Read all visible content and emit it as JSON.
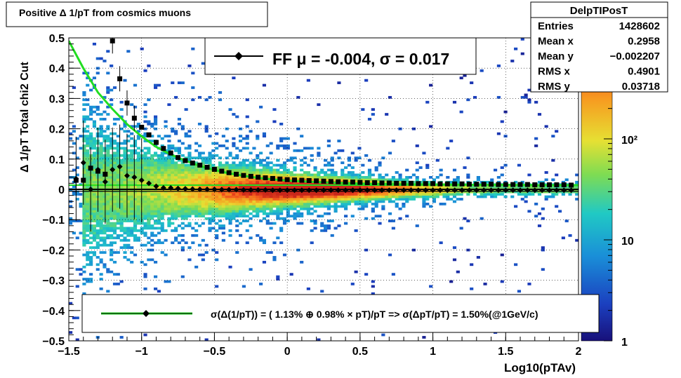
{
  "colors": {
    "fit_line": "#22dd22",
    "markers": "#000000",
    "frame": "#000000",
    "grid": "#000000"
  },
  "chart_data": {
    "type": "heatmap",
    "title": "Positive Δ 1/pT from cosmics muons",
    "xlabel": "Log10(pTAv)",
    "ylabel": "Δ 1/pT  Total chi2 Cut",
    "xlim": [
      -1.5,
      2.0
    ],
    "ylim": [
      -0.5,
      0.5
    ],
    "x_ticks": [
      "−1.5",
      "−1",
      "−0.5",
      "0",
      "0.5",
      "1",
      "1.5",
      "2"
    ],
    "y_ticks": [
      "−0.5",
      "−0.4",
      "−0.3",
      "−0.2",
      "−0.1",
      "0",
      "0.1",
      "0.2",
      "0.3",
      "0.4",
      "0.5"
    ],
    "grid": true,
    "colorbar": {
      "scale": "log",
      "range": [
        1,
        1000
      ],
      "tick_labels": [
        "1",
        "10",
        "10²"
      ],
      "tick_values": [
        1,
        10,
        100
      ]
    },
    "stats_box": {
      "name": "DelpTIPosT",
      "rows": [
        {
          "label": "Entries",
          "value": "1428602"
        },
        {
          "label": "Mean x",
          "value": "0.2958"
        },
        {
          "label": "Mean y",
          "value": "−0.002207"
        },
        {
          "label": "RMS x",
          "value": "0.4901"
        },
        {
          "label": "RMS y",
          "value": "0.03718"
        }
      ]
    },
    "legend_top": "FF μ = -0.004, σ =   0.017",
    "legend_bottom": "σ(Δ(1/pT)) = ( 1.13% ⊕  0.98% × pT)/pT => σ(ΔpT/pT) =  1.50%(@1GeV/c)",
    "series": [
      {
        "kind": "sigma_markers",
        "x": [
          -1.45,
          -1.4,
          -1.35,
          -1.3,
          -1.25,
          -1.2,
          -1.15,
          -1.1,
          -1.05,
          -1.0,
          -0.95,
          -0.9,
          -0.85,
          -0.8,
          -0.75,
          -0.7,
          -0.65,
          -0.6,
          -0.55,
          -0.5,
          -0.45,
          -0.4,
          -0.35,
          -0.3,
          -0.25,
          -0.2,
          -0.15,
          -0.1,
          -0.05,
          0.0,
          0.05,
          0.1,
          0.15,
          0.2,
          0.25,
          0.3,
          0.35,
          0.4,
          0.45,
          0.5,
          0.55,
          0.6,
          0.65,
          0.7,
          0.75,
          0.8,
          0.85,
          0.9,
          0.95,
          1.0,
          1.05,
          1.1,
          1.15,
          1.2,
          1.25,
          1.3,
          1.35,
          1.4,
          1.45,
          1.5,
          1.55,
          1.6,
          1.65,
          1.7,
          1.75,
          1.8,
          1.85,
          1.9,
          1.95
        ],
        "y": [
          0.03,
          0.03,
          0.07,
          0.06,
          0.05,
          0.49,
          0.365,
          0.285,
          0.235,
          0.205,
          0.18,
          0.155,
          0.135,
          0.12,
          0.105,
          0.095,
          0.087,
          0.08,
          0.073,
          0.066,
          0.06,
          0.055,
          0.05,
          0.046,
          0.043,
          0.04,
          0.038,
          0.036,
          0.034,
          0.032,
          0.031,
          0.03,
          0.029,
          0.028,
          0.027,
          0.026,
          0.025,
          0.024,
          0.024,
          0.023,
          0.022,
          0.022,
          0.021,
          0.021,
          0.02,
          0.02,
          0.02,
          0.019,
          0.019,
          0.019,
          0.018,
          0.018,
          0.018,
          0.018,
          0.017,
          0.017,
          0.017,
          0.017,
          0.016,
          0.016,
          0.016,
          0.016,
          0.016,
          0.015,
          0.015,
          0.015,
          0.015,
          0.015,
          0.014
        ]
      },
      {
        "kind": "mean_markers",
        "x": [
          -1.45,
          -1.4,
          -1.35,
          -1.3,
          -1.25,
          -1.2,
          -1.15,
          -1.1,
          -1.05,
          -1.0,
          -0.95,
          -0.9,
          -0.85,
          -0.8,
          -0.75,
          -0.7,
          -0.65,
          -0.6,
          -0.55,
          -0.5,
          -0.45,
          -0.4,
          -0.35,
          -0.3,
          -0.25,
          -0.2,
          -0.15,
          -0.1,
          -0.05,
          0.0,
          0.05,
          0.1,
          0.15,
          0.2,
          0.25,
          0.3,
          0.35,
          0.4,
          0.45,
          0.5,
          0.55,
          0.6,
          0.65,
          0.7,
          0.75,
          0.8,
          0.85,
          0.9,
          0.95,
          1.0,
          1.05,
          1.1,
          1.15,
          1.2,
          1.25,
          1.3,
          1.35,
          1.4,
          1.45,
          1.5,
          1.55,
          1.6,
          1.65,
          1.7,
          1.75,
          1.8,
          1.85,
          1.9,
          1.95
        ],
        "y": [
          0.035,
          0.088,
          0.0,
          0.065,
          0.025,
          0.065,
          0.075,
          0.045,
          0.04,
          0.03,
          0.02,
          0.01,
          0.005,
          0.005,
          0.003,
          0.002,
          0.001,
          0.0,
          0.0,
          0.0,
          -0.001,
          -0.001,
          -0.001,
          -0.002,
          -0.002,
          -0.002,
          -0.002,
          -0.003,
          -0.003,
          -0.003,
          -0.003,
          -0.003,
          -0.003,
          -0.003,
          -0.003,
          -0.003,
          -0.003,
          -0.003,
          -0.003,
          -0.003,
          -0.003,
          -0.003,
          -0.003,
          -0.003,
          -0.003,
          -0.003,
          -0.003,
          -0.003,
          -0.003,
          -0.003,
          -0.003,
          -0.003,
          -0.003,
          -0.003,
          -0.003,
          -0.003,
          -0.003,
          -0.003,
          -0.003,
          -0.003,
          -0.003,
          -0.003,
          -0.003,
          -0.003,
          -0.003,
          -0.003,
          -0.003,
          -0.003,
          -0.003
        ]
      }
    ],
    "fit_curve": {
      "x": [
        -1.5,
        -1.4,
        -1.3,
        -1.2,
        -1.1,
        -1.0,
        -0.9,
        -0.8,
        -0.7,
        -0.6,
        -0.5,
        -0.4,
        -0.3,
        -0.2,
        -0.1,
        0.0,
        0.25,
        0.5,
        0.75,
        1.0,
        1.25,
        1.5,
        1.75,
        2.0
      ],
      "y": [
        0.49,
        0.4,
        0.32,
        0.265,
        0.215,
        0.175,
        0.14,
        0.115,
        0.095,
        0.077,
        0.064,
        0.053,
        0.045,
        0.038,
        0.033,
        0.029,
        0.023,
        0.019,
        0.017,
        0.016,
        0.015,
        0.015,
        0.014,
        0.014
      ]
    },
    "fit_mean": -0.004
  }
}
